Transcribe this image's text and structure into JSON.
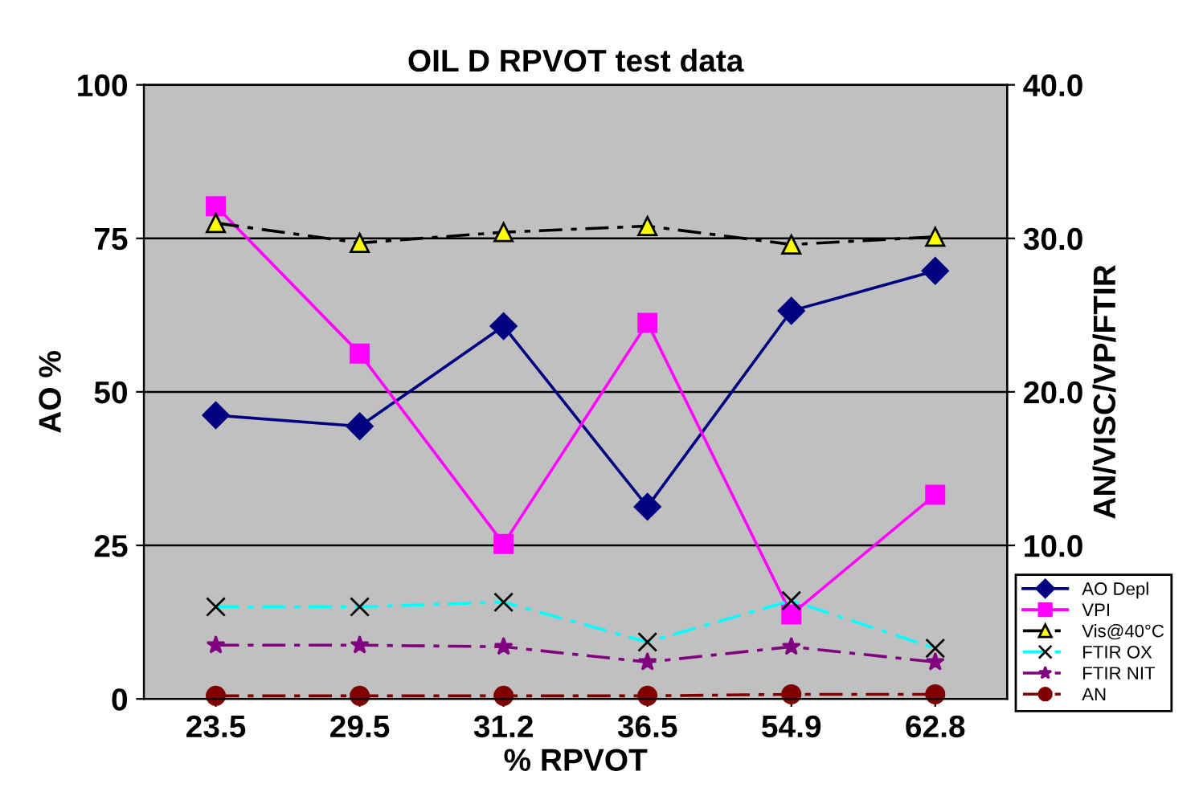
{
  "chart_data": {
    "type": "line",
    "title": "OIL D RPVOT test data",
    "xlabel": "% RPVOT",
    "ylabel": "AO %",
    "y2label": "AN/VISC/VP/FTIR",
    "categories": [
      "23.5",
      "29.5",
      "31.2",
      "36.5",
      "54.9",
      "62.8"
    ],
    "ylim": [
      0,
      100
    ],
    "yticks": [
      0,
      25,
      50,
      75,
      100
    ],
    "y2lim": [
      0,
      40
    ],
    "y2ticks": [
      {
        "value": 10,
        "label": "10.0"
      },
      {
        "value": 20,
        "label": "20.0"
      },
      {
        "value": 30,
        "label": "30.0"
      },
      {
        "value": 40,
        "label": "40.0"
      }
    ],
    "grid": "y",
    "legend": "bottom right",
    "series": [
      {
        "name": "AO Depl",
        "color": "#000080",
        "marker": "diamond",
        "line_style": "solid",
        "values": [
          46.2,
          44.4,
          60.7,
          31.3,
          63.2,
          69.7
        ]
      },
      {
        "name": "VPI",
        "color": "#ff00ff",
        "marker": "square",
        "line_style": "solid",
        "axis": "y2",
        "values": [
          32.1,
          22.5,
          10.1,
          24.5,
          5.5,
          13.3
        ]
      },
      {
        "name": "Vis@40°C",
        "color": "#000000",
        "marker": "triangle",
        "line_style": "dashed",
        "axis": "y2",
        "values": [
          31.0,
          29.7,
          30.4,
          30.8,
          29.6,
          30.1
        ]
      },
      {
        "name": "FTIR OX",
        "color": "#00ffff",
        "marker": "cross",
        "line_style": "dashed",
        "axis": "y2",
        "values": [
          6.0,
          6.0,
          6.3,
          3.7,
          6.4,
          3.3
        ]
      },
      {
        "name": "FTIR NIT",
        "color": "#800080",
        "marker": "star",
        "line_style": "dashed",
        "axis": "y2",
        "values": [
          3.5,
          3.5,
          3.4,
          2.4,
          3.4,
          2.4
        ]
      },
      {
        "name": "AN",
        "color": "#800000",
        "marker": "circle",
        "line_style": "dashed",
        "axis": "y2",
        "values": [
          0.2,
          0.2,
          0.2,
          0.2,
          0.3,
          0.3
        ]
      }
    ]
  }
}
